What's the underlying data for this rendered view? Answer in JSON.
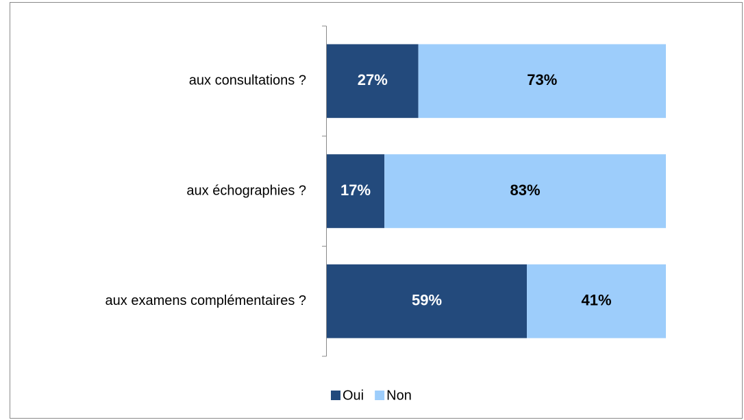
{
  "chart_data": {
    "type": "stacked_bar_horizontal",
    "categories": [
      "aux consultations ?",
      "aux échographies ?",
      "aux examens complémentaires ?"
    ],
    "series": [
      {
        "name": "Oui",
        "color": "#234a7c",
        "values": [
          27,
          17,
          59
        ],
        "value_labels": [
          "27%",
          "17%",
          "59%"
        ]
      },
      {
        "name": "Non",
        "color": "#9dcdfb",
        "values": [
          73,
          83,
          41
        ],
        "value_labels": [
          "73%",
          "83%",
          "41%"
        ]
      }
    ],
    "xlim": [
      0,
      100
    ],
    "legend": "bottom"
  }
}
